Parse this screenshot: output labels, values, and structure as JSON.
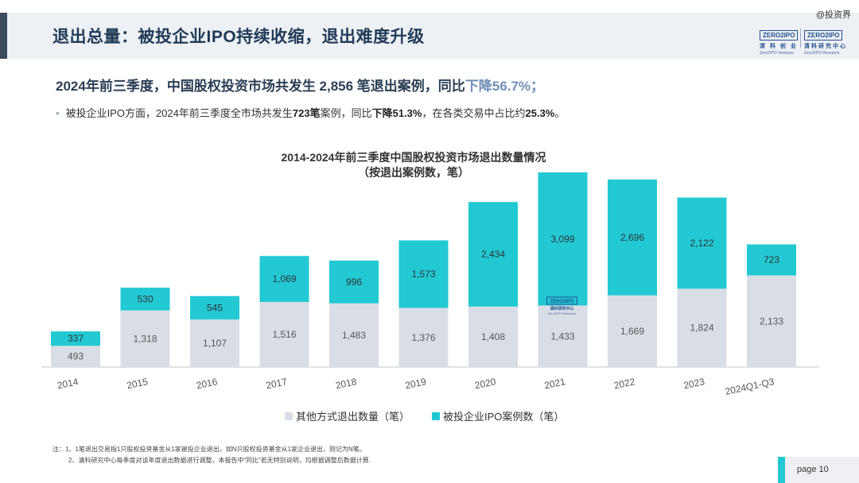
{
  "header": {
    "title": "退出总量：被投企业IPO持续收缩，退出难度升级",
    "watermark": "@投资界"
  },
  "logos": [
    {
      "box": "ZERO2IPO",
      "cn": "清 科 创 业",
      "en": "Zero2IPO Ventures"
    },
    {
      "box": "ZERO2IPO",
      "cn": "清科研究中心",
      "en": "Zero2IPO Research"
    }
  ],
  "headline": {
    "prefix": "2024年前三季度，中国股权投资市场共发生 2,856 笔退出案例，同比",
    "emph": "下降56.7%；"
  },
  "bullet": {
    "t1": "被投企业IPO方面，2024年前三季度全市场共发生",
    "b1": "723笔",
    "t2": "案例，同比",
    "b2": "下降51.3%",
    "t3": "，在各类交易中占比约",
    "b3": "25.3%",
    "t4": "。"
  },
  "chart_data": {
    "type": "bar",
    "stacked": true,
    "title": "2014-2024年前三季度中国股权投资市场退出数量情况",
    "subtitle": "（按退出案例数，笔）",
    "categories": [
      "2014",
      "2015",
      "2016",
      "2017",
      "2018",
      "2019",
      "2020",
      "2021",
      "2022",
      "2023",
      "2024Q1-Q3"
    ],
    "series": [
      {
        "name": "其他方式退出数量（笔）",
        "color": "#d9dee6",
        "values": [
          493,
          1318,
          1107,
          1516,
          1483,
          1376,
          1408,
          1433,
          1669,
          1824,
          2133
        ]
      },
      {
        "name": "被投企业IPO案例数（笔）",
        "color": "#22c9d3",
        "values": [
          337,
          530,
          545,
          1069,
          996,
          1573,
          2434,
          3099,
          2696,
          2122,
          723
        ]
      }
    ],
    "value_labels": [
      [
        "493",
        "1,318",
        "1,107",
        "1,516",
        "1,483",
        "1,376",
        "1,408",
        "1,433",
        "1,669",
        "1,824",
        "2,133"
      ],
      [
        "337",
        "530",
        "545",
        "1,069",
        "996",
        "1,573",
        "2,434",
        "3,099",
        "2,696",
        "2,122",
        "723"
      ]
    ],
    "ylim": [
      0,
      4600
    ],
    "grid": false,
    "legend": "bottom",
    "in_chart_logo": {
      "box": "ZERO2IPO",
      "cn": "清科研究中心",
      "en": "Zero2IPO Research"
    }
  },
  "notes": {
    "n1": "注：1、1笔退出交易指1只股权投资基金从1家被投企业退出，如N只股权投资基金从1家企业退出，则记为N笔。",
    "n2": "2、清科研究中心每季度对该年度退出数据进行调整，本报告中“同比”若无特别说明，均根据调整后数据计算."
  },
  "footer": {
    "page": "page   10"
  }
}
